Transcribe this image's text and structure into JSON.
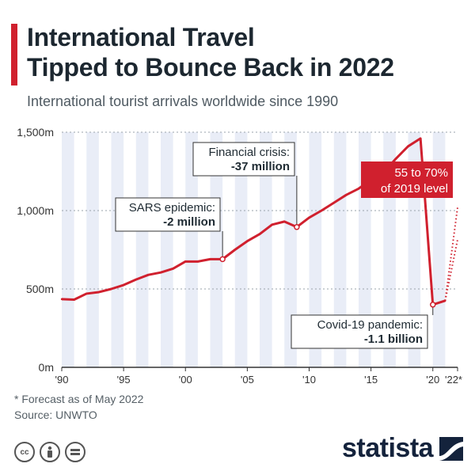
{
  "header": {
    "title_line1": "International Travel",
    "title_line2": "Tipped to Bounce Back in 2022",
    "subtitle": "International tourist arrivals worldwide since 1990"
  },
  "colors": {
    "accent": "#d0202e",
    "band": "#e9edf7",
    "text": "#1f2b33",
    "brand": "#14233c"
  },
  "chart_data": {
    "type": "line",
    "title": "International Travel Tipped to Bounce Back in 2022",
    "xlabel": "",
    "ylabel": "",
    "ylim": [
      0,
      1500
    ],
    "xlim": [
      1990,
      2022
    ],
    "y_ticks": [
      {
        "value": 0,
        "label": "0m"
      },
      {
        "value": 500,
        "label": "500m"
      },
      {
        "value": 1000,
        "label": "1,000m"
      },
      {
        "value": 1500,
        "label": "1,500m"
      }
    ],
    "x_ticks": [
      {
        "value": 1990,
        "label": "'90"
      },
      {
        "value": 1995,
        "label": "'95"
      },
      {
        "value": 2000,
        "label": "'00"
      },
      {
        "value": 2005,
        "label": "'05"
      },
      {
        "value": 2010,
        "label": "'10"
      },
      {
        "value": 2015,
        "label": "'15"
      },
      {
        "value": 2020,
        "label": "'20"
      },
      {
        "value": 2022,
        "label": "'22*"
      }
    ],
    "series": [
      {
        "x": [
          1990,
          1991,
          1992,
          1993,
          1994,
          1995,
          1996,
          1997,
          1998,
          1999,
          2000,
          2001,
          2002,
          2003,
          2004,
          2005,
          2006,
          2007,
          2008,
          2009,
          2010,
          2011,
          2012,
          2013,
          2014,
          2015,
          2016,
          2017,
          2018,
          2019,
          2020,
          2021
        ],
        "values": [
          435,
          432,
          470,
          480,
          500,
          525,
          560,
          590,
          605,
          630,
          675,
          675,
          690,
          690,
          750,
          805,
          850,
          910,
          930,
          895,
          955,
          1000,
          1050,
          1100,
          1140,
          1195,
          1240,
          1330,
          1410,
          1460,
          400,
          425
        ]
      }
    ],
    "forecast": [
      {
        "label": "low",
        "x": [
          2021,
          2022
        ],
        "values": [
          425,
          815
        ]
      },
      {
        "label": "high",
        "x": [
          2021,
          2022
        ],
        "values": [
          425,
          1020
        ]
      }
    ],
    "annotations": [
      {
        "line1": "SARS epidemic:",
        "line2": "-2 million",
        "year": 2003,
        "value": 690
      },
      {
        "line1": "Financial crisis:",
        "line2": "-37 million",
        "year": 2009,
        "value": 895
      },
      {
        "line1": "Covid-19 pandemic:",
        "line2": "-1.1 billion",
        "year": 2020,
        "value": 400
      },
      {
        "line1": "55 to 70%",
        "line2": "of 2019 level",
        "year": 2022,
        "value": 1020
      }
    ],
    "grid": true,
    "legend": "none"
  },
  "notes": {
    "forecast": "* Forecast as of May 2022",
    "source": "Source: UNWTO"
  },
  "footer": {
    "brand": "statista",
    "icons": [
      "cc-icon",
      "attribution-icon",
      "no-derivatives-icon"
    ]
  }
}
